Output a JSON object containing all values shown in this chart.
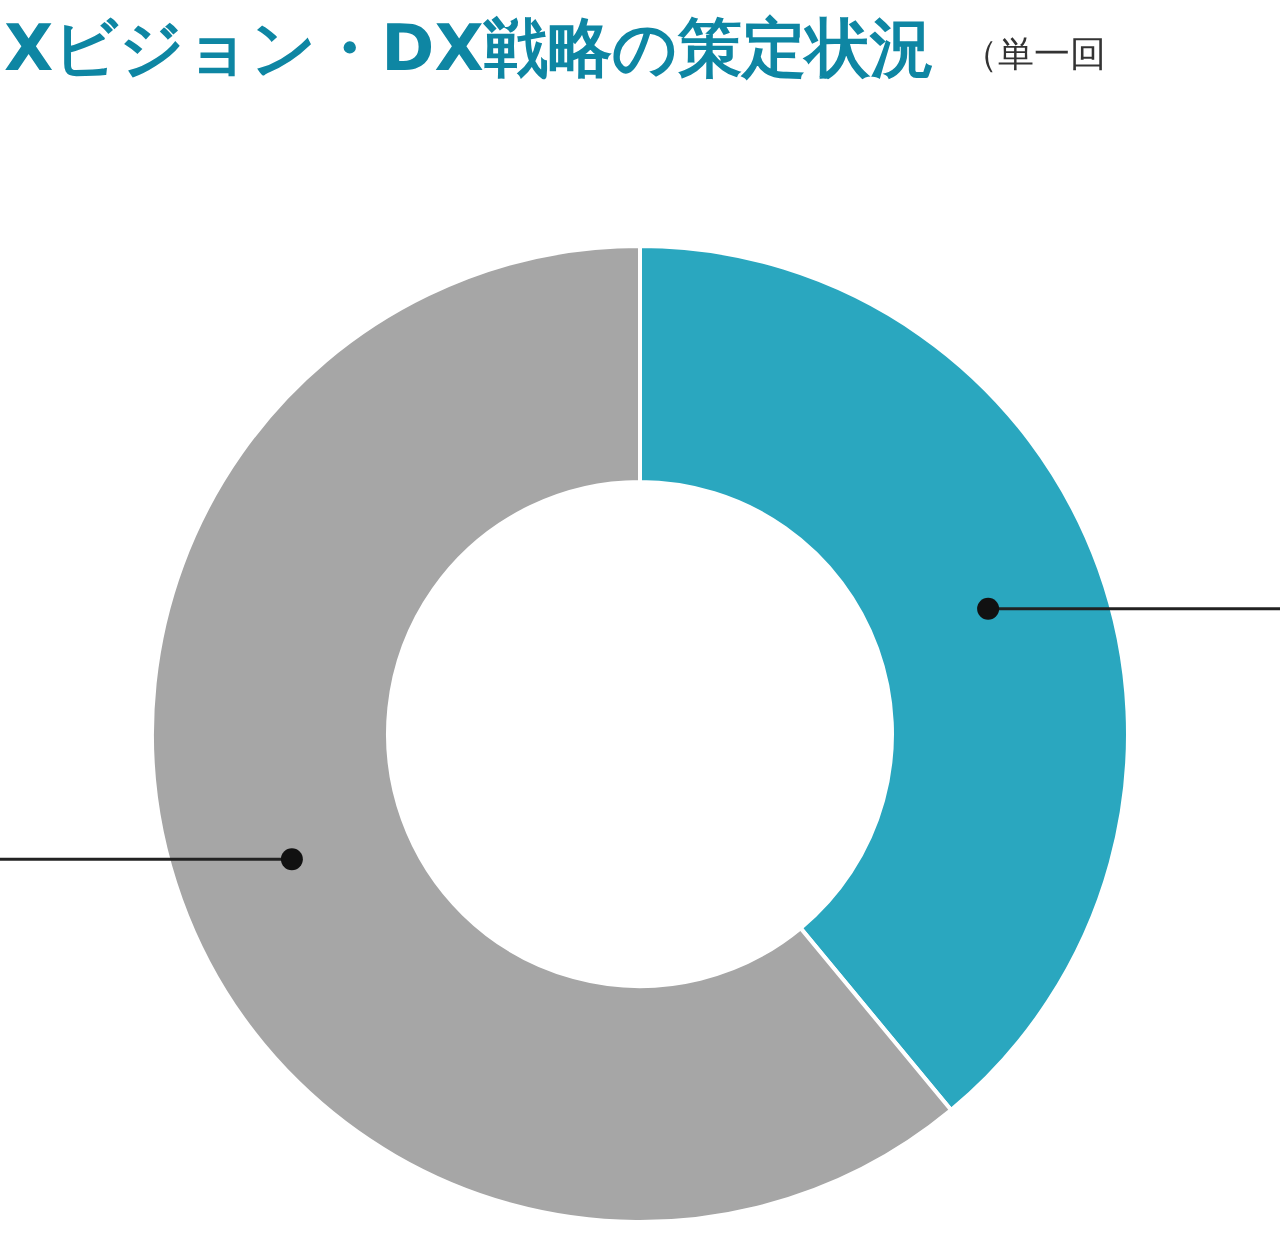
{
  "chart_data": {
    "type": "donut",
    "title": "Xビジョン・DX戦略の策定状況",
    "subtitle": "（単一回",
    "categories": [
      null,
      null
    ],
    "values": [
      39,
      61
    ],
    "colors": [
      "#2aa7bf",
      "#a6a6a6"
    ]
  }
}
